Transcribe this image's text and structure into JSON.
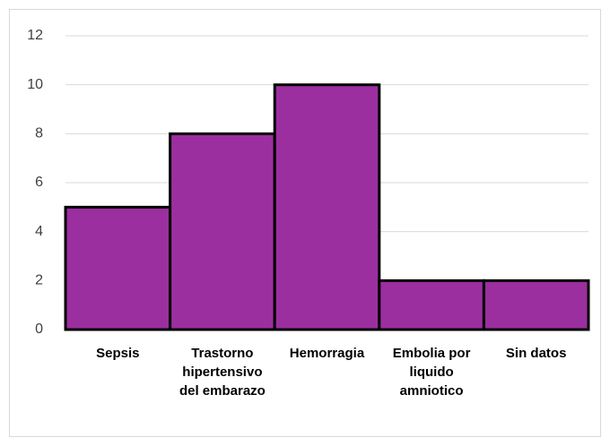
{
  "chart_data": {
    "type": "bar",
    "categories": [
      "Sepsis",
      "Trastorno hipertensivo del embarazo",
      "Hemorragia",
      "Embolia por liquido amniotico",
      "Sin datos"
    ],
    "values": [
      5,
      8,
      10,
      2,
      2
    ],
    "color": "#9b2f9f",
    "ylim": [
      0,
      12
    ],
    "yticks": [
      0,
      2,
      4,
      6,
      8,
      10,
      12
    ],
    "grid": true
  }
}
